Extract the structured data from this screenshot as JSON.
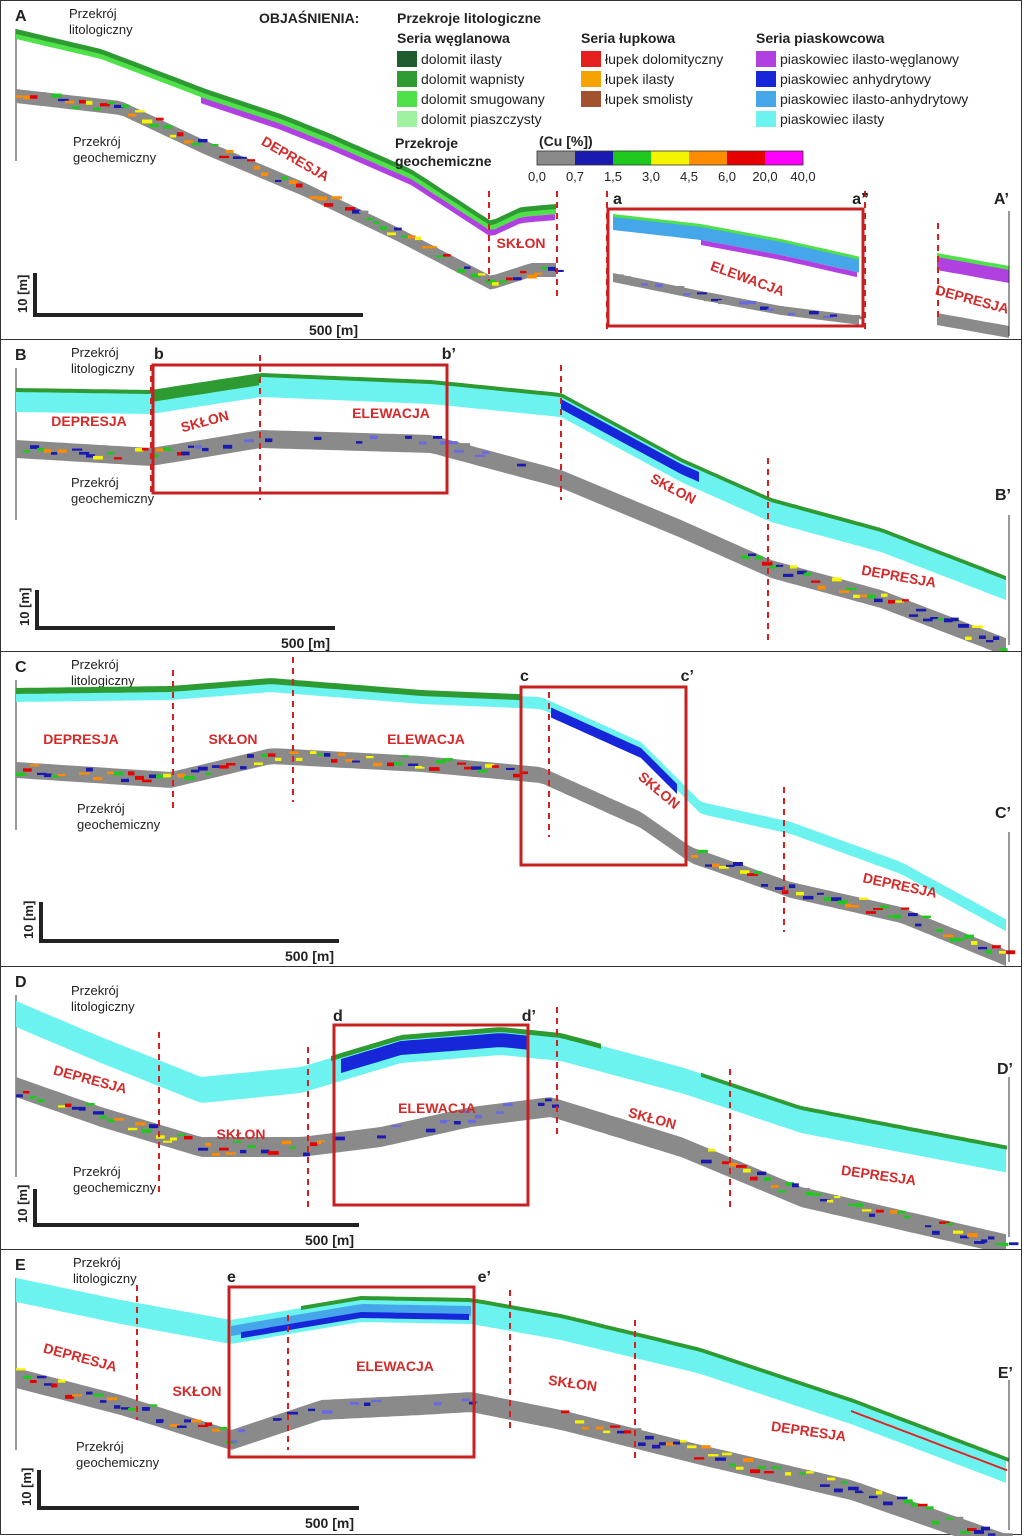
{
  "legend": {
    "title": "OBJAŚNIENIA:",
    "subtitle": "Przekroje litologiczne",
    "groups": [
      {
        "name": "Seria węglanowa",
        "items": [
          {
            "label": "dolomit ilasty",
            "color": "#1f5c2e"
          },
          {
            "label": "dolomit wapnisty",
            "color": "#2e9a32"
          },
          {
            "label": "dolomit smugowany",
            "color": "#4fe14a"
          },
          {
            "label": "dolomit piaszczysty",
            "color": "#9ff2a0"
          }
        ]
      },
      {
        "name": "Seria łupkowa",
        "items": [
          {
            "label": "łupek dolomityczny",
            "color": "#e51e1e"
          },
          {
            "label": "łupek ilasty",
            "color": "#f5a300"
          },
          {
            "label": "łupek smolisty",
            "color": "#a3522f"
          }
        ]
      },
      {
        "name": "Seria piaskowcowa",
        "items": [
          {
            "label": "piaskowiec ilasto-węglanowy",
            "color": "#b040e0"
          },
          {
            "label": "piaskowiec anhydrytowy",
            "color": "#1626d8"
          },
          {
            "label": "piaskowiec ilasto-anhydrytowy",
            "color": "#46a6ea"
          },
          {
            "label": "piaskowiec ilasty",
            "color": "#6cf3ef"
          }
        ]
      }
    ],
    "geochem_title_1": "Przekroje",
    "geochem_title_2": "geochemiczne",
    "cu_label": "(Cu [%])",
    "cu_colors": [
      "#8a8a8a",
      "#1a1ab0",
      "#1fc81f",
      "#f4f400",
      "#ff8c00",
      "#e60000",
      "#ff00ff"
    ],
    "cu_ticks": [
      "0,0",
      "0,7",
      "1,5",
      "3,0",
      "4,5",
      "6,0",
      "20,0",
      "40,0"
    ]
  },
  "common": {
    "litho": "Przekrój\nlitologiczny",
    "geo": "Przekrój\ngeochemiczny",
    "scale_v": "10 [m]",
    "scale_h": "500 [m]"
  },
  "panels": [
    {
      "id": "A",
      "start": "A",
      "end": "A’",
      "zones": [
        {
          "label": "DEPRESJA"
        },
        {
          "label": "SKŁON"
        },
        {
          "label": "ELEWACJA"
        },
        {
          "label": "DEPRESJA"
        }
      ],
      "box": {
        "l": "a",
        "r": "a”"
      }
    },
    {
      "id": "B",
      "start": "B",
      "end": "B’",
      "zones": [
        {
          "label": "DEPRESJA"
        },
        {
          "label": "SKŁON"
        },
        {
          "label": "ELEWACJA"
        },
        {
          "label": "SKŁON"
        },
        {
          "label": "DEPRESJA"
        }
      ],
      "box": {
        "l": "b",
        "r": "b’"
      }
    },
    {
      "id": "C",
      "start": "C",
      "end": "C’",
      "zones": [
        {
          "label": "DEPRESJA"
        },
        {
          "label": "SKŁON"
        },
        {
          "label": "ELEWACJA"
        },
        {
          "label": "SKŁON"
        },
        {
          "label": "DEPRESJA"
        }
      ],
      "box": {
        "l": "c",
        "r": "c’"
      }
    },
    {
      "id": "D",
      "start": "D",
      "end": "D’",
      "zones": [
        {
          "label": "DEPRESJA"
        },
        {
          "label": "SKŁON"
        },
        {
          "label": "ELEWACJA"
        },
        {
          "label": "SKŁON"
        },
        {
          "label": "DEPRESJA"
        }
      ],
      "box": {
        "l": "d",
        "r": "d’"
      }
    },
    {
      "id": "E",
      "start": "E",
      "end": "E’",
      "zones": [
        {
          "label": "DEPRESJA"
        },
        {
          "label": "SKŁON"
        },
        {
          "label": "ELEWACJA"
        },
        {
          "label": "SKŁON"
        },
        {
          "label": "DEPRESJA"
        }
      ],
      "box": {
        "l": "e",
        "r": "e’"
      }
    }
  ]
}
